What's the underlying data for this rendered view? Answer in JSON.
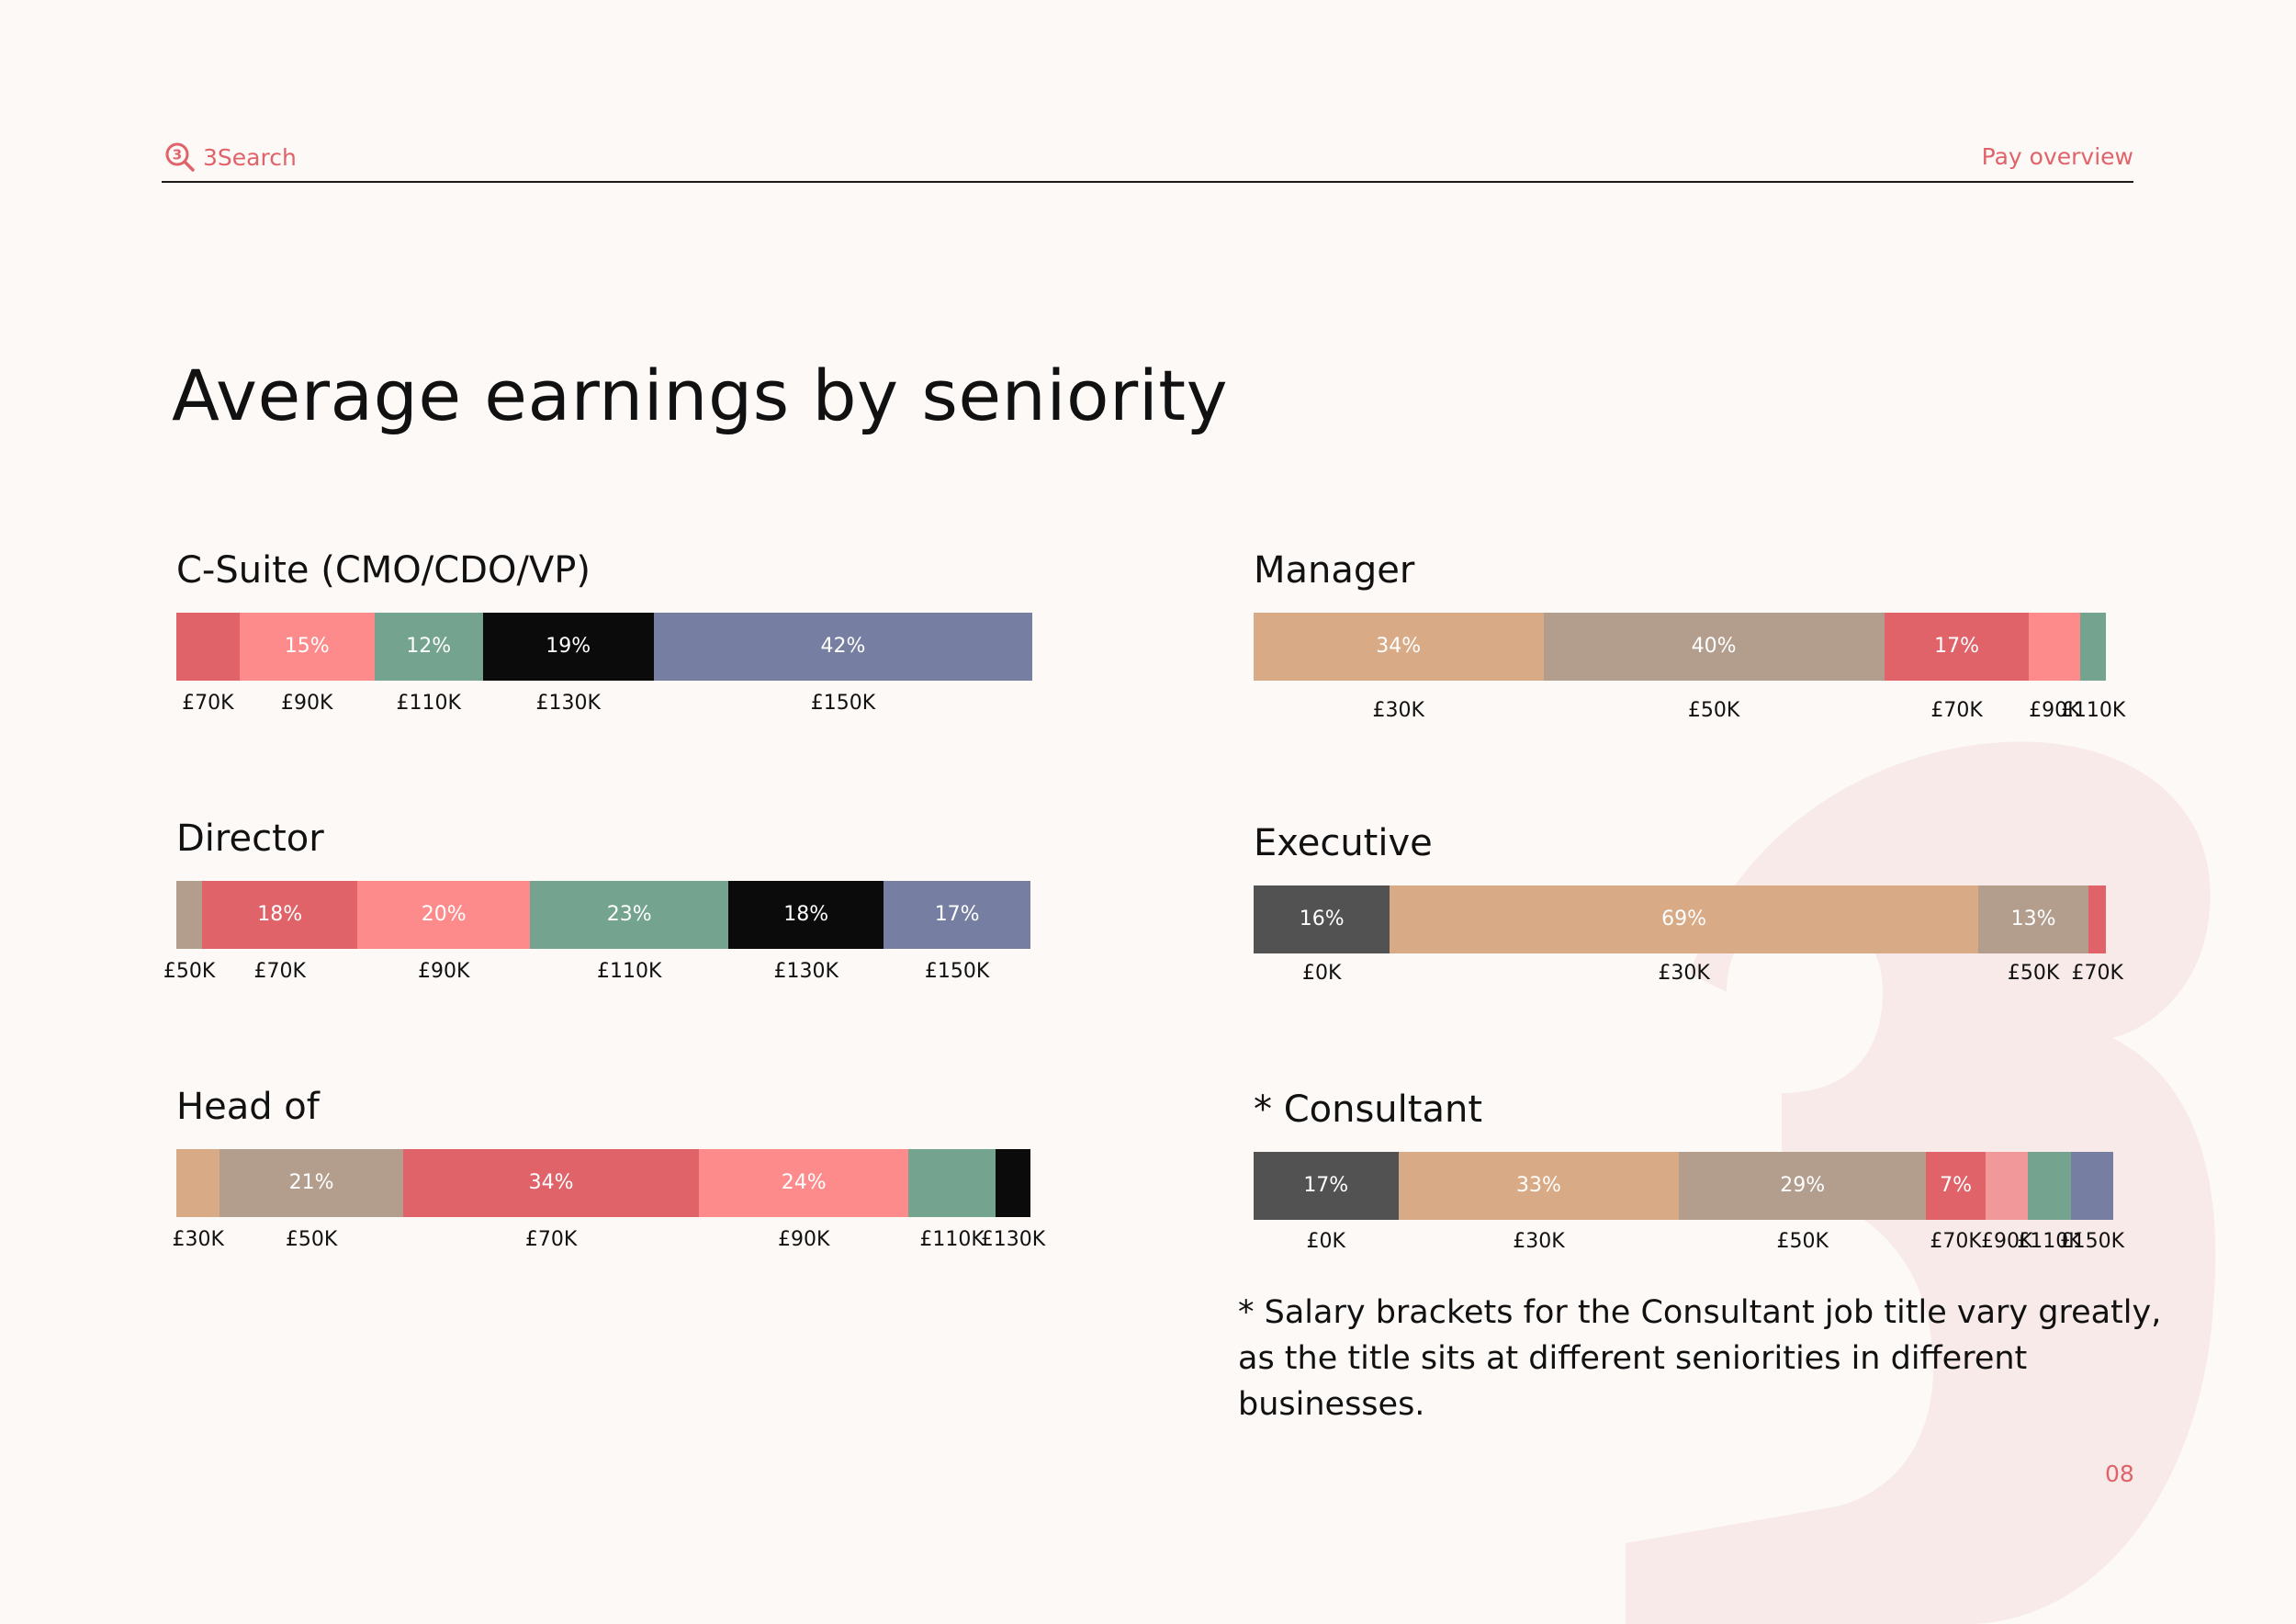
{
  "header": {
    "brand": "3Search",
    "section": "Pay overview"
  },
  "title": "Average earnings by seniority",
  "footnote": "* Salary brackets for the Consultant job title vary greatly, as the title sits at different seniorities in different businesses.",
  "page_number": "08",
  "colors": {
    "background": "#fdf9f7",
    "accent": "#e0636a",
    "watermark": "#f8eae8"
  },
  "chart_data": [
    {
      "type": "bar",
      "orientation": "horizontal",
      "stacked": "100%",
      "title": "C-Suite (CMO/CDO/VP)",
      "segments": [
        {
          "bracket": "£70K",
          "value": 7,
          "label": "",
          "color": "#e0636a",
          "text_color": "#ffffff"
        },
        {
          "bracket": "£90K",
          "value": 15,
          "label": "15%",
          "color": "#fd8b8b",
          "text_color": "#ffffff"
        },
        {
          "bracket": "£110K",
          "value": 12,
          "label": "12%",
          "color": "#74a38f",
          "text_color": "#ffffff"
        },
        {
          "bracket": "£130K",
          "value": 19,
          "label": "19%",
          "color": "#0b0b0b",
          "text_color": "#ffffff"
        },
        {
          "bracket": "£150K",
          "value": 42,
          "label": "42%",
          "color": "#767fa1",
          "text_color": "#ffffff"
        }
      ]
    },
    {
      "type": "bar",
      "orientation": "horizontal",
      "stacked": "100%",
      "title": "Director",
      "segments": [
        {
          "bracket": "£50K",
          "value": 3,
          "label": "",
          "color": "#b39e8e",
          "text_color": "#ffffff"
        },
        {
          "bracket": "£70K",
          "value": 18,
          "label": "18%",
          "color": "#e0636a",
          "text_color": "#ffffff"
        },
        {
          "bracket": "£90K",
          "value": 20,
          "label": "20%",
          "color": "#fd8b8b",
          "text_color": "#ffffff"
        },
        {
          "bracket": "£110K",
          "value": 23,
          "label": "23%",
          "color": "#74a38f",
          "text_color": "#ffffff"
        },
        {
          "bracket": "£130K",
          "value": 18,
          "label": "18%",
          "color": "#0b0b0b",
          "text_color": "#ffffff"
        },
        {
          "bracket": "£150K",
          "value": 17,
          "label": "17%",
          "color": "#767fa1",
          "text_color": "#ffffff"
        }
      ]
    },
    {
      "type": "bar",
      "orientation": "horizontal",
      "stacked": "100%",
      "title": "Head of",
      "segments": [
        {
          "bracket": "£30K",
          "value": 5,
          "label": "",
          "color": "#d8aa85",
          "text_color": "#ffffff"
        },
        {
          "bracket": "£50K",
          "value": 21,
          "label": "21%",
          "color": "#b39e8e",
          "text_color": "#ffffff"
        },
        {
          "bracket": "£70K",
          "value": 34,
          "label": "34%",
          "color": "#e0636a",
          "text_color": "#ffffff"
        },
        {
          "bracket": "£90K",
          "value": 24,
          "label": "24%",
          "color": "#fd8b8b",
          "text_color": "#ffffff"
        },
        {
          "bracket": "£110K",
          "value": 10,
          "label": "",
          "color": "#74a38f",
          "text_color": "#ffffff"
        },
        {
          "bracket": "£130K",
          "value": 4,
          "label": "",
          "color": "#0b0b0b",
          "text_color": "#ffffff"
        }
      ]
    },
    {
      "type": "bar",
      "orientation": "horizontal",
      "stacked": "100%",
      "title": "Manager",
      "segments": [
        {
          "bracket": "£30K",
          "value": 34,
          "label": "34%",
          "color": "#d8aa85",
          "text_color": "#ffffff"
        },
        {
          "bracket": "£50K",
          "value": 40,
          "label": "40%",
          "color": "#b39e8e",
          "text_color": "#ffffff"
        },
        {
          "bracket": "£70K",
          "value": 17,
          "label": "17%",
          "color": "#e0636a",
          "text_color": "#ffffff"
        },
        {
          "bracket": "£90K",
          "value": 6,
          "label": "",
          "color": "#fd8b8b",
          "text_color": "#ffffff"
        },
        {
          "bracket": "£110K",
          "value": 3,
          "label": "",
          "color": "#74a38f",
          "text_color": "#ffffff"
        }
      ]
    },
    {
      "type": "bar",
      "orientation": "horizontal",
      "stacked": "100%",
      "title": "Executive",
      "segments": [
        {
          "bracket": "£0K",
          "value": 16,
          "label": "16%",
          "color": "#525252",
          "text_color": "#ffffff"
        },
        {
          "bracket": "£30K",
          "value": 69,
          "label": "69%",
          "color": "#d8aa85",
          "text_color": "#ffffff"
        },
        {
          "bracket": "£50K",
          "value": 13,
          "label": "13%",
          "color": "#b39e8e",
          "text_color": "#ffffff"
        },
        {
          "bracket": "£70K",
          "value": 2,
          "label": "",
          "color": "#e0636a",
          "text_color": "#ffffff"
        }
      ]
    },
    {
      "type": "bar",
      "orientation": "horizontal",
      "stacked": "100%",
      "title": "* Consultant",
      "segments": [
        {
          "bracket": "£0K",
          "value": 17,
          "label": "17%",
          "color": "#525252",
          "text_color": "#ffffff"
        },
        {
          "bracket": "£30K",
          "value": 33,
          "label": "33%",
          "color": "#d8aa85",
          "text_color": "#ffffff"
        },
        {
          "bracket": "£50K",
          "value": 29,
          "label": "29%",
          "color": "#b39e8e",
          "text_color": "#ffffff"
        },
        {
          "bracket": "£70K",
          "value": 7,
          "label": "7%",
          "color": "#e0636a",
          "text_color": "#ffffff"
        },
        {
          "bracket": "£90K",
          "value": 5,
          "label": "",
          "color": "#f0989a",
          "text_color": "#ffffff"
        },
        {
          "bracket": "£110K",
          "value": 5,
          "label": "",
          "color": "#74a38f",
          "text_color": "#ffffff"
        },
        {
          "bracket": "£150K",
          "value": 5,
          "label": "",
          "color": "#767fa1",
          "text_color": "#ffffff"
        }
      ]
    }
  ]
}
